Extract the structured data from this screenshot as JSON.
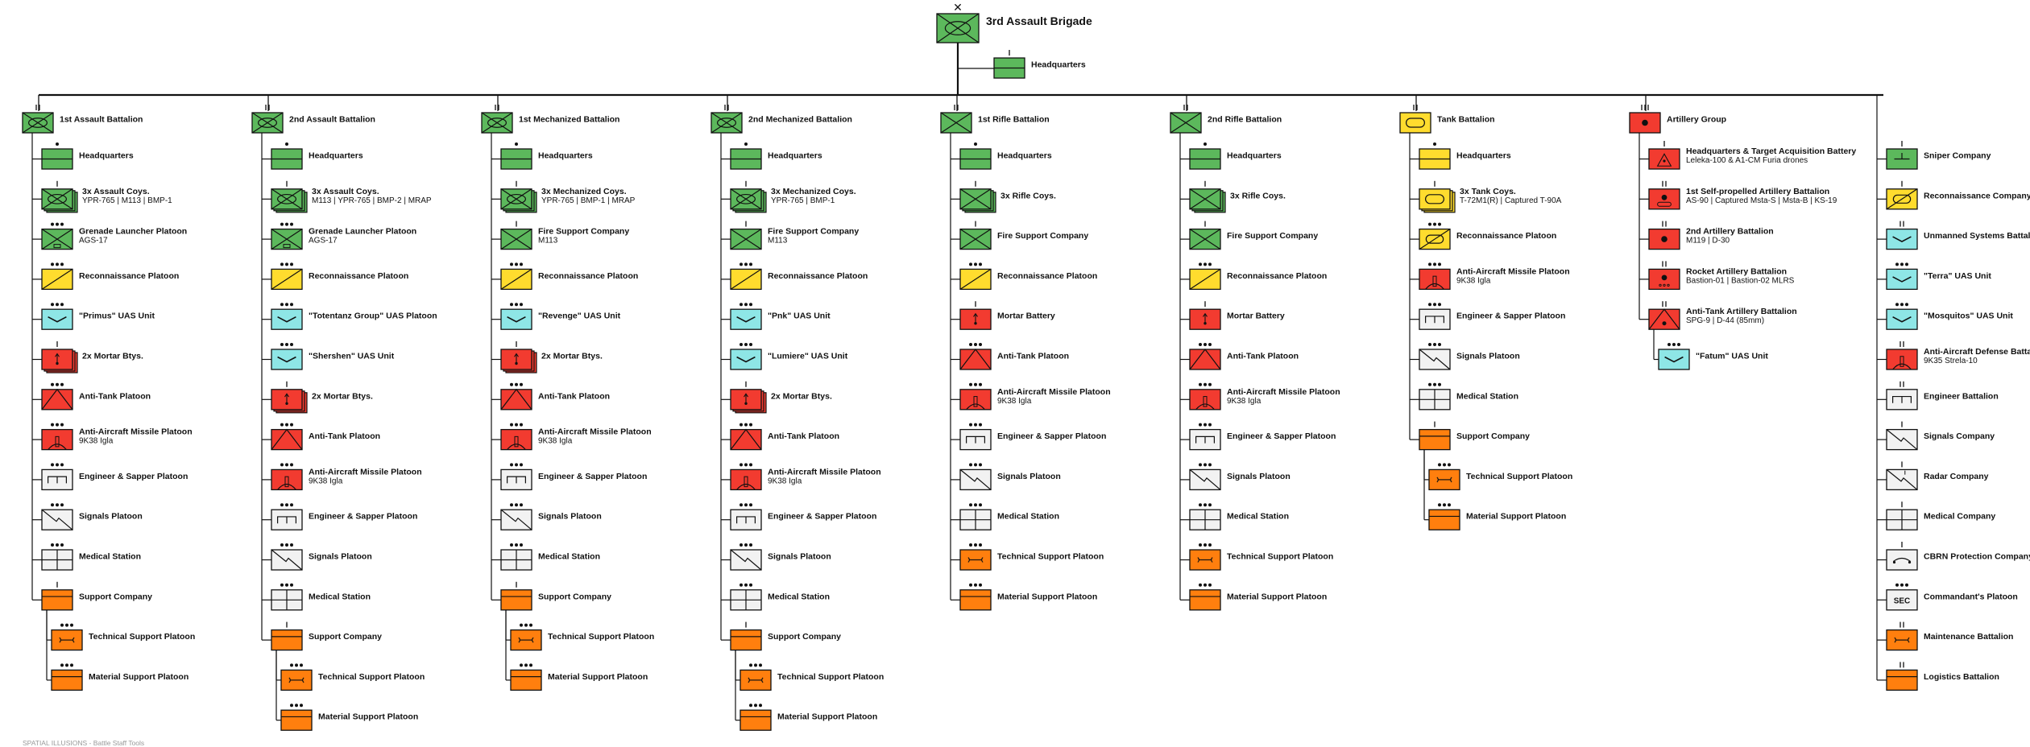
{
  "colors": {
    "infantry": "#5cb85c",
    "artillery": "#f23b30",
    "uas": "#8ee6e6",
    "support": "#ff7f0e",
    "neutral": "#f2f2f2",
    "armor": "#ffdc2e",
    "stroke": "#111111"
  },
  "top": {
    "title": "3rd Assault Brigade",
    "symbol": "mech",
    "echelon": "x",
    "hq": {
      "label": "Headquarters",
      "symbol": "hq",
      "color": "infantry"
    }
  },
  "columns": [
    {
      "head": {
        "label": "1st Assault Battalion",
        "symbol": "mech",
        "color": "infantry",
        "echelon": "II"
      },
      "items": [
        {
          "label": "Headquarters",
          "symbol": "hq",
          "color": "infantry",
          "echelon": "•"
        },
        {
          "label": "3x Assault Coys.",
          "sub": "YPR-765 | M113 | BMP-1",
          "symbol": "mech",
          "color": "infantry",
          "echelon": "I",
          "stack": true
        },
        {
          "label": "Grenade Launcher Platoon",
          "sub": "AGS-17",
          "symbol": "gl",
          "color": "infantry",
          "echelon": "•••"
        },
        {
          "label": "Reconnaissance Platoon",
          "symbol": "recon",
          "color": "armor",
          "echelon": "•••"
        },
        {
          "label": "\"Primus\" UAS Unit",
          "symbol": "uas",
          "color": "uas",
          "echelon": "•••"
        },
        {
          "label": "2x Mortar Btys.",
          "symbol": "mortar",
          "color": "artillery",
          "echelon": "I",
          "stack": true
        },
        {
          "label": "Anti-Tank Platoon",
          "symbol": "at",
          "color": "artillery",
          "echelon": "•••"
        },
        {
          "label": "Anti-Aircraft Missile Platoon",
          "sub": "9K38 Igla",
          "symbol": "aa",
          "color": "artillery",
          "echelon": "•••"
        },
        {
          "label": "Engineer & Sapper Platoon",
          "symbol": "eng",
          "color": "neutral",
          "echelon": "•••"
        },
        {
          "label": "Signals Platoon",
          "symbol": "sig",
          "color": "neutral",
          "echelon": "•••"
        },
        {
          "label": "Medical Station",
          "symbol": "med",
          "color": "neutral",
          "echelon": "•••"
        },
        {
          "label": "Support Company",
          "symbol": "sup",
          "color": "support",
          "echelon": "I"
        },
        {
          "label": "Technical Support Platoon",
          "symbol": "maint",
          "color": "support",
          "echelon": "•••",
          "indent": true
        },
        {
          "label": "Material Support Platoon",
          "symbol": "sup",
          "color": "support",
          "echelon": "•••",
          "indent": true
        }
      ]
    },
    {
      "head": {
        "label": "2nd Assault Battalion",
        "symbol": "mech",
        "color": "infantry",
        "echelon": "II"
      },
      "items": [
        {
          "label": "Headquarters",
          "symbol": "hq",
          "color": "infantry",
          "echelon": "•"
        },
        {
          "label": "3x Assault Coys.",
          "sub": "M113 | YPR-765 | BMP-2 | MRAP",
          "symbol": "mech",
          "color": "infantry",
          "echelon": "I",
          "stack": true
        },
        {
          "label": "Grenade Launcher Platoon",
          "sub": "AGS-17",
          "symbol": "gl",
          "color": "infantry",
          "echelon": "•••"
        },
        {
          "label": "Reconnaissance Platoon",
          "symbol": "recon",
          "color": "armor",
          "echelon": "•••"
        },
        {
          "label": "\"Totentanz Group\" UAS Platoon",
          "symbol": "uas",
          "color": "uas",
          "echelon": "•••"
        },
        {
          "label": "\"Shershen\" UAS Unit",
          "symbol": "uas",
          "color": "uas",
          "echelon": "•••"
        },
        {
          "label": "2x Mortar Btys.",
          "symbol": "mortar",
          "color": "artillery",
          "echelon": "I",
          "stack": true
        },
        {
          "label": "Anti-Tank Platoon",
          "symbol": "at",
          "color": "artillery",
          "echelon": "•••"
        },
        {
          "label": "Anti-Aircraft Missile Platoon",
          "sub": "9K38 Igla",
          "symbol": "aa",
          "color": "artillery",
          "echelon": "•••"
        },
        {
          "label": "Engineer & Sapper Platoon",
          "symbol": "eng",
          "color": "neutral",
          "echelon": "•••"
        },
        {
          "label": "Signals Platoon",
          "symbol": "sig",
          "color": "neutral",
          "echelon": "•••"
        },
        {
          "label": "Medical Station",
          "symbol": "med",
          "color": "neutral",
          "echelon": "•••"
        },
        {
          "label": "Support Company",
          "symbol": "sup",
          "color": "support",
          "echelon": "I"
        },
        {
          "label": "Technical Support Platoon",
          "symbol": "maint",
          "color": "support",
          "echelon": "•••",
          "indent": true
        },
        {
          "label": "Material Support Platoon",
          "symbol": "sup",
          "color": "support",
          "echelon": "•••",
          "indent": true
        }
      ]
    },
    {
      "head": {
        "label": "1st Mechanized Battalion",
        "symbol": "mech",
        "color": "infantry",
        "echelon": "II"
      },
      "items": [
        {
          "label": "Headquarters",
          "symbol": "hq",
          "color": "infantry",
          "echelon": "•"
        },
        {
          "label": "3x Mechanized Coys.",
          "sub": "YPR-765 | BMP-1 | MRAP",
          "symbol": "mech",
          "color": "infantry",
          "echelon": "I",
          "stack": true
        },
        {
          "label": "Fire Support Company",
          "sub": "M113",
          "symbol": "inf",
          "color": "infantry",
          "echelon": "I"
        },
        {
          "label": "Reconnaissance Platoon",
          "symbol": "recon",
          "color": "armor",
          "echelon": "•••"
        },
        {
          "label": "\"Revenge\" UAS Unit",
          "symbol": "uas",
          "color": "uas",
          "echelon": "•••"
        },
        {
          "label": "2x Mortar Btys.",
          "symbol": "mortar",
          "color": "artillery",
          "echelon": "I",
          "stack": true
        },
        {
          "label": "Anti-Tank Platoon",
          "symbol": "at",
          "color": "artillery",
          "echelon": "•••"
        },
        {
          "label": "Anti-Aircraft Missile Platoon",
          "sub": "9K38 Igla",
          "symbol": "aa",
          "color": "artillery",
          "echelon": "•••"
        },
        {
          "label": "Engineer & Sapper Platoon",
          "symbol": "eng",
          "color": "neutral",
          "echelon": "•••"
        },
        {
          "label": "Signals Platoon",
          "symbol": "sig",
          "color": "neutral",
          "echelon": "•••"
        },
        {
          "label": "Medical Station",
          "symbol": "med",
          "color": "neutral",
          "echelon": "•••"
        },
        {
          "label": "Support Company",
          "symbol": "sup",
          "color": "support",
          "echelon": "I"
        },
        {
          "label": "Technical Support Platoon",
          "symbol": "maint",
          "color": "support",
          "echelon": "•••",
          "indent": true
        },
        {
          "label": "Material Support Platoon",
          "symbol": "sup",
          "color": "support",
          "echelon": "•••",
          "indent": true
        }
      ]
    },
    {
      "head": {
        "label": "2nd Mechanized Battalion",
        "symbol": "mech",
        "color": "infantry",
        "echelon": "II"
      },
      "items": [
        {
          "label": "Headquarters",
          "symbol": "hq",
          "color": "infantry",
          "echelon": "•"
        },
        {
          "label": "3x Mechanized Coys.",
          "sub": "YPR-765 | BMP-1",
          "symbol": "mech",
          "color": "infantry",
          "echelon": "I",
          "stack": true
        },
        {
          "label": "Fire Support Company",
          "sub": "M113",
          "symbol": "inf",
          "color": "infantry",
          "echelon": "I"
        },
        {
          "label": "Reconnaissance Platoon",
          "symbol": "recon",
          "color": "armor",
          "echelon": "•••"
        },
        {
          "label": "\"Pnk\" UAS Unit",
          "symbol": "uas",
          "color": "uas",
          "echelon": "•••"
        },
        {
          "label": "\"Lumiere\" UAS Unit",
          "symbol": "uas",
          "color": "uas",
          "echelon": "•••"
        },
        {
          "label": "2x Mortar Btys.",
          "symbol": "mortar",
          "color": "artillery",
          "echelon": "I",
          "stack": true
        },
        {
          "label": "Anti-Tank Platoon",
          "symbol": "at",
          "color": "artillery",
          "echelon": "•••"
        },
        {
          "label": "Anti-Aircraft Missile Platoon",
          "sub": "9K38 Igla",
          "symbol": "aa",
          "color": "artillery",
          "echelon": "•••"
        },
        {
          "label": "Engineer & Sapper Platoon",
          "symbol": "eng",
          "color": "neutral",
          "echelon": "•••"
        },
        {
          "label": "Signals Platoon",
          "symbol": "sig",
          "color": "neutral",
          "echelon": "•••"
        },
        {
          "label": "Medical Station",
          "symbol": "med",
          "color": "neutral",
          "echelon": "•••"
        },
        {
          "label": "Support Company",
          "symbol": "sup",
          "color": "support",
          "echelon": "I"
        },
        {
          "label": "Technical Support Platoon",
          "symbol": "maint",
          "color": "support",
          "echelon": "•••",
          "indent": true
        },
        {
          "label": "Material Support Platoon",
          "symbol": "sup",
          "color": "support",
          "echelon": "•••",
          "indent": true
        }
      ]
    },
    {
      "head": {
        "label": "1st Rifle Battalion",
        "symbol": "inf",
        "color": "infantry",
        "echelon": "II"
      },
      "items": [
        {
          "label": "Headquarters",
          "symbol": "hq",
          "color": "infantry",
          "echelon": "•"
        },
        {
          "label": "3x Rifle Coys.",
          "symbol": "inf",
          "color": "infantry",
          "echelon": "I",
          "stack": true
        },
        {
          "label": "Fire Support Company",
          "symbol": "inf",
          "color": "infantry",
          "echelon": "I"
        },
        {
          "label": "Reconnaissance Platoon",
          "symbol": "recon",
          "color": "armor",
          "echelon": "•••"
        },
        {
          "label": "Mortar Battery",
          "symbol": "mortar",
          "color": "artillery",
          "echelon": "I"
        },
        {
          "label": "Anti-Tank Platoon",
          "symbol": "at",
          "color": "artillery",
          "echelon": "•••"
        },
        {
          "label": "Anti-Aircraft Missile Platoon",
          "sub": "9K38 Igla",
          "symbol": "aa",
          "color": "artillery",
          "echelon": "•••"
        },
        {
          "label": "Engineer & Sapper Platoon",
          "symbol": "eng",
          "color": "neutral",
          "echelon": "•••"
        },
        {
          "label": "Signals Platoon",
          "symbol": "sig",
          "color": "neutral",
          "echelon": "•••"
        },
        {
          "label": "Medical Station",
          "symbol": "med",
          "color": "neutral",
          "echelon": "•••"
        },
        {
          "label": "Technical Support Platoon",
          "symbol": "maint",
          "color": "support",
          "echelon": "•••"
        },
        {
          "label": "Material Support Platoon",
          "symbol": "sup",
          "color": "support",
          "echelon": "•••"
        }
      ]
    },
    {
      "head": {
        "label": "2nd Rifle Battalion",
        "symbol": "inf",
        "color": "infantry",
        "echelon": "II"
      },
      "items": [
        {
          "label": "Headquarters",
          "symbol": "hq",
          "color": "infantry",
          "echelon": "•"
        },
        {
          "label": "3x Rifle Coys.",
          "symbol": "inf",
          "color": "infantry",
          "echelon": "I",
          "stack": true
        },
        {
          "label": "Fire Support Company",
          "symbol": "inf",
          "color": "infantry",
          "echelon": "I"
        },
        {
          "label": "Reconnaissance Platoon",
          "symbol": "recon",
          "color": "armor",
          "echelon": "•••"
        },
        {
          "label": "Mortar Battery",
          "symbol": "mortar",
          "color": "artillery",
          "echelon": "I"
        },
        {
          "label": "Anti-Tank Platoon",
          "symbol": "at",
          "color": "artillery",
          "echelon": "•••"
        },
        {
          "label": "Anti-Aircraft Missile Platoon",
          "sub": "9K38 Igla",
          "symbol": "aa",
          "color": "artillery",
          "echelon": "•••"
        },
        {
          "label": "Engineer & Sapper Platoon",
          "symbol": "eng",
          "color": "neutral",
          "echelon": "•••"
        },
        {
          "label": "Signals Platoon",
          "symbol": "sig",
          "color": "neutral",
          "echelon": "•••"
        },
        {
          "label": "Medical Station",
          "symbol": "med",
          "color": "neutral",
          "echelon": "•••"
        },
        {
          "label": "Technical Support Platoon",
          "symbol": "maint",
          "color": "support",
          "echelon": "•••"
        },
        {
          "label": "Material Support Platoon",
          "symbol": "sup",
          "color": "support",
          "echelon": "•••"
        }
      ]
    },
    {
      "head": {
        "label": "Tank Battalion",
        "symbol": "armor",
        "color": "armor",
        "echelon": "II"
      },
      "items": [
        {
          "label": "Headquarters",
          "symbol": "hq",
          "color": "armor",
          "echelon": "•"
        },
        {
          "label": "3x Tank Coys.",
          "sub": "T-72M1(R) | Captured T-90A",
          "symbol": "armor",
          "color": "armor",
          "echelon": "I",
          "stack": true
        },
        {
          "label": "Reconnaissance Platoon",
          "symbol": "recon_armor",
          "color": "armor",
          "echelon": "•••"
        },
        {
          "label": "Anti-Aircraft Missile Platoon",
          "sub": "9K38 Igla",
          "symbol": "aa",
          "color": "artillery",
          "echelon": "•••"
        },
        {
          "label": "Engineer & Sapper Platoon",
          "symbol": "eng",
          "color": "neutral",
          "echelon": "•••"
        },
        {
          "label": "Signals Platoon",
          "symbol": "sig",
          "color": "neutral",
          "echelon": "•••"
        },
        {
          "label": "Medical Station",
          "symbol": "med",
          "color": "neutral",
          "echelon": "•••"
        },
        {
          "label": "Support Company",
          "symbol": "sup",
          "color": "support",
          "echelon": "I"
        },
        {
          "label": "Technical Support Platoon",
          "symbol": "maint",
          "color": "support",
          "echelon": "•••",
          "indent": true
        },
        {
          "label": "Material Support Platoon",
          "symbol": "sup",
          "color": "support",
          "echelon": "•••",
          "indent": true
        }
      ]
    },
    {
      "head": {
        "label": "Artillery Group",
        "symbol": "art",
        "color": "artillery",
        "echelon": "III"
      },
      "items": [
        {
          "label": "Headquarters & Target Acquisition Battery",
          "sub": "Leleka-100 & A1-CM Furia drones",
          "symbol": "ta",
          "color": "artillery",
          "echelon": "I"
        },
        {
          "label": "1st Self-propelled Artillery Battalion",
          "sub": "AS-90 | Captured Msta-S | Msta-B | KS-19",
          "symbol": "sp",
          "color": "artillery",
          "echelon": "II"
        },
        {
          "label": "2nd Artillery Battalion",
          "sub": "M119 | D-30",
          "symbol": "art",
          "color": "artillery",
          "echelon": "II"
        },
        {
          "label": "Rocket Artillery Battalion",
          "sub": "Bastion-01 | Bastion-02 MLRS",
          "symbol": "rocket",
          "color": "artillery",
          "echelon": "II"
        },
        {
          "label": "Anti-Tank Artillery Battalion",
          "sub": "SPG-9 | D-44 (85mm)",
          "symbol": "atart",
          "color": "artillery",
          "echelon": "II"
        },
        {
          "label": "\"Fatum\" UAS Unit",
          "symbol": "uas",
          "color": "uas",
          "echelon": "•••",
          "indent": true
        }
      ]
    },
    {
      "head": null,
      "items": [
        {
          "label": "Sniper Company",
          "symbol": "sniper",
          "color": "infantry",
          "echelon": "I"
        },
        {
          "label": "Reconnaissance Company",
          "symbol": "recon_armor",
          "color": "armor",
          "echelon": "I"
        },
        {
          "label": "Unmanned Systems Battalion",
          "symbol": "uas",
          "color": "uas",
          "echelon": "II"
        },
        {
          "label": "\"Terra\" UAS Unit",
          "symbol": "uas",
          "color": "uas",
          "echelon": "•••"
        },
        {
          "label": "\"Mosquitos\" UAS Unit",
          "symbol": "uas",
          "color": "uas",
          "echelon": "•••"
        },
        {
          "label": "Anti-Aircraft Defense Battalion",
          "sub": "9K35 Strela-10",
          "symbol": "aa",
          "color": "artillery",
          "echelon": "II"
        },
        {
          "label": "Engineer Battalion",
          "symbol": "eng",
          "color": "neutral",
          "echelon": "II"
        },
        {
          "label": "Signals Company",
          "symbol": "sig",
          "color": "neutral",
          "echelon": "I"
        },
        {
          "label": "Radar Company",
          "symbol": "radar",
          "color": "neutral",
          "echelon": "I"
        },
        {
          "label": "Medical Company",
          "symbol": "med",
          "color": "neutral",
          "echelon": "I"
        },
        {
          "label": "CBRN Protection Company",
          "symbol": "cbrn",
          "color": "neutral",
          "echelon": "I"
        },
        {
          "label": "Commandant's Platoon",
          "symbol": "sec",
          "color": "neutral",
          "echelon": "•••",
          "text": "SEC"
        },
        {
          "label": "Maintenance Battalion",
          "symbol": "maint",
          "color": "support",
          "echelon": "II"
        },
        {
          "label": "Logistics Battalion",
          "symbol": "sup",
          "color": "support",
          "echelon": "II"
        }
      ]
    }
  ],
  "footer": "SPATIAL ILLUSIONS - Battle Staff Tools"
}
